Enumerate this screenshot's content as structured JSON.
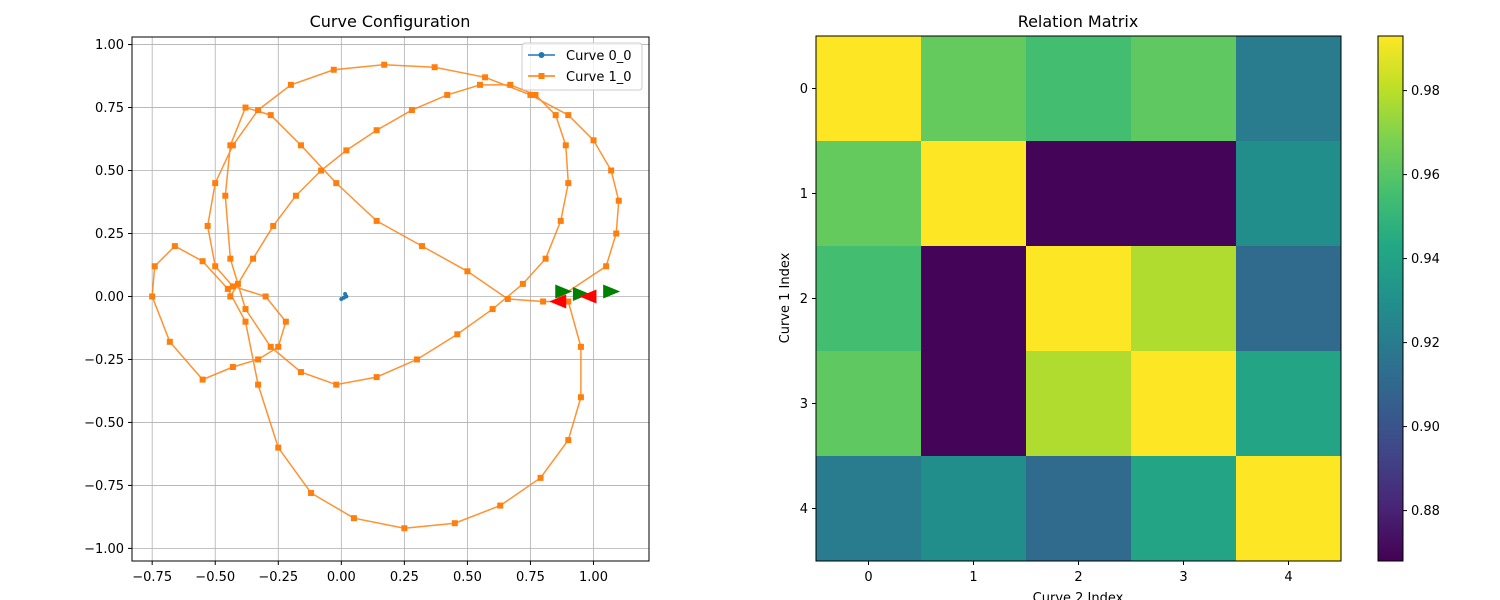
{
  "chart_data": [
    {
      "type": "line",
      "title": "Curve Configuration",
      "xlabel": "",
      "ylabel": "",
      "xlim": [
        -0.83,
        1.22
      ],
      "ylim": [
        -1.05,
        1.03
      ],
      "xticks": [
        -0.75,
        -0.5,
        -0.25,
        0.0,
        0.25,
        0.5,
        0.75,
        1.0
      ],
      "xtick_labels": [
        "−0.75",
        "−0.50",
        "−0.25",
        "0.00",
        "0.25",
        "0.50",
        "0.75",
        "1.00"
      ],
      "yticks": [
        -1.0,
        -0.75,
        -0.5,
        -0.25,
        0.0,
        0.25,
        0.5,
        0.75,
        1.0
      ],
      "ytick_labels": [
        "−1.00",
        "−0.75",
        "−0.50",
        "−0.25",
        "0.00",
        "0.25",
        "0.50",
        "0.75",
        "1.00"
      ],
      "grid": true,
      "legend_position": "top-right",
      "series": [
        {
          "name": "Curve 0_0",
          "color": "#1f77b4",
          "marker": "circle",
          "x": [
            0.0,
            0.01,
            0.02,
            0.015
          ],
          "y": [
            -0.01,
            -0.005,
            0.0,
            0.01
          ]
        },
        {
          "name": "Curve 1_0",
          "color": "#ff7f0e",
          "marker": "square",
          "x": [
            0.87,
            1.05,
            1.09,
            1.1,
            1.07,
            1.0,
            0.9,
            0.75,
            0.57,
            0.37,
            0.17,
            -0.03,
            -0.2,
            -0.33,
            -0.43,
            -0.5,
            -0.53,
            -0.5,
            -0.43,
            -0.3,
            -0.22,
            -0.25,
            -0.33,
            -0.43,
            -0.55,
            -0.68,
            -0.75,
            -0.74,
            -0.66,
            -0.55,
            -0.45,
            -0.38,
            -0.33,
            -0.25,
            -0.12,
            0.05,
            0.25,
            0.45,
            0.63,
            0.79,
            0.9,
            0.95,
            0.95,
            0.9,
            0.8,
            0.66,
            0.5,
            0.32,
            0.14,
            -0.02,
            -0.16,
            -0.28,
            -0.38,
            -0.44,
            -0.46,
            -0.44,
            -0.38,
            -0.28,
            -0.16,
            -0.02,
            0.14,
            0.3,
            0.46,
            0.6,
            0.72,
            0.81,
            0.87,
            0.9,
            0.89,
            0.85,
            0.77,
            0.67,
            0.55,
            0.42,
            0.28,
            0.14,
            0.02,
            -0.08,
            -0.18,
            -0.27,
            -0.35,
            -0.41,
            -0.44
          ],
          "y": [
            0.0,
            0.12,
            0.25,
            0.38,
            0.5,
            0.62,
            0.72,
            0.8,
            0.87,
            0.91,
            0.92,
            0.9,
            0.84,
            0.74,
            0.6,
            0.45,
            0.28,
            0.12,
            0.04,
            0.0,
            -0.1,
            -0.2,
            -0.25,
            -0.28,
            -0.33,
            -0.18,
            0.0,
            0.12,
            0.2,
            0.14,
            0.03,
            -0.1,
            -0.35,
            -0.6,
            -0.78,
            -0.88,
            -0.92,
            -0.9,
            -0.83,
            -0.72,
            -0.57,
            -0.4,
            -0.2,
            -0.02,
            -0.02,
            -0.01,
            0.1,
            0.2,
            0.3,
            0.45,
            0.6,
            0.72,
            0.75,
            0.6,
            0.4,
            0.15,
            -0.05,
            -0.2,
            -0.3,
            -0.35,
            -0.32,
            -0.25,
            -0.15,
            -0.05,
            0.05,
            0.15,
            0.3,
            0.45,
            0.6,
            0.72,
            0.8,
            0.84,
            0.84,
            0.8,
            0.74,
            0.66,
            0.58,
            0.5,
            0.4,
            0.28,
            0.15,
            0.05,
            0.0
          ]
        }
      ],
      "arrows": [
        {
          "x": 0.88,
          "y": 0.02,
          "direction": "right",
          "color": "#008000"
        },
        {
          "x": 0.95,
          "y": 0.01,
          "direction": "right",
          "color": "#008000"
        },
        {
          "x": 1.07,
          "y": 0.02,
          "direction": "right",
          "color": "#008000"
        },
        {
          "x": 0.86,
          "y": -0.02,
          "direction": "left",
          "color": "#ff0000"
        },
        {
          "x": 0.98,
          "y": 0.0,
          "direction": "left",
          "color": "#ff0000"
        }
      ]
    },
    {
      "type": "heatmap",
      "title": "Relation Matrix",
      "xlabel": "Curve 2 Index",
      "ylabel": "Curve 1 Index",
      "x_tick_labels": [
        "0",
        "1",
        "2",
        "3",
        "4"
      ],
      "y_tick_labels": [
        "0",
        "1",
        "2",
        "3",
        "4"
      ],
      "colormap": "viridis",
      "vmin": 0.868,
      "vmax": 0.993,
      "values": [
        [
          0.993,
          0.963,
          0.955,
          0.962,
          0.92
        ],
        [
          0.963,
          0.993,
          0.869,
          0.869,
          0.929
        ],
        [
          0.955,
          0.869,
          0.993,
          0.978,
          0.911
        ],
        [
          0.962,
          0.869,
          0.978,
          0.993,
          0.941
        ],
        [
          0.92,
          0.929,
          0.911,
          0.941,
          0.993
        ]
      ],
      "colorbar_ticks": [
        0.88,
        0.9,
        0.92,
        0.94,
        0.96,
        0.98
      ],
      "colorbar_tick_labels": [
        "0.88",
        "0.90",
        "0.92",
        "0.94",
        "0.96",
        "0.98"
      ]
    }
  ]
}
